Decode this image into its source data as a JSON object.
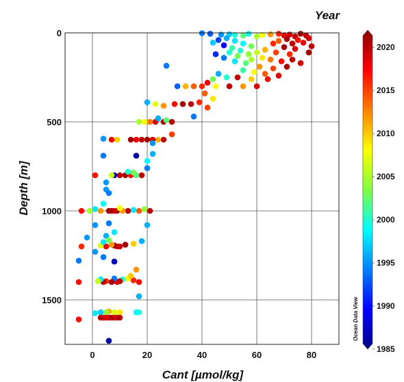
{
  "chart_data": {
    "type": "scatter",
    "title": "",
    "xlabel": "Cant [µmol/kg]",
    "ylabel": "Depth [m]",
    "xlim": [
      -10,
      90
    ],
    "ylim": [
      1750,
      0
    ],
    "y_inverted": true,
    "x_ticks": [
      0,
      20,
      40,
      60,
      80
    ],
    "y_ticks": [
      0,
      500,
      1000,
      1500
    ],
    "grid": true,
    "colorbar": {
      "title": "Year",
      "range": [
        1985,
        2022
      ],
      "ticks": [
        1985,
        1990,
        1995,
        2000,
        2005,
        2010,
        2015,
        2020
      ],
      "colormap": [
        "#00008b",
        "#0000ff",
        "#0080ff",
        "#00ffff",
        "#80ff40",
        "#ffff00",
        "#ff8000",
        "#ff0000",
        "#8b0000"
      ]
    },
    "watermark": "Ocean Data View",
    "points": [
      {
        "x": 40,
        "y": 2,
        "year": 1994
      },
      {
        "x": 43,
        "y": 5,
        "year": 1993
      },
      {
        "x": 47,
        "y": 10,
        "year": 1995
      },
      {
        "x": 50,
        "y": 8,
        "year": 1997
      },
      {
        "x": 52,
        "y": 12,
        "year": 2000
      },
      {
        "x": 55,
        "y": 15,
        "year": 2002
      },
      {
        "x": 57,
        "y": 5,
        "year": 1999
      },
      {
        "x": 60,
        "y": 20,
        "year": 2005
      },
      {
        "x": 62,
        "y": 12,
        "year": 2008
      },
      {
        "x": 65,
        "y": 8,
        "year": 2012
      },
      {
        "x": 68,
        "y": 5,
        "year": 2016
      },
      {
        "x": 70,
        "y": 15,
        "year": 2018
      },
      {
        "x": 72,
        "y": 10,
        "year": 2019
      },
      {
        "x": 74,
        "y": 20,
        "year": 2020
      },
      {
        "x": 76,
        "y": 5,
        "year": 2021
      },
      {
        "x": 78,
        "y": 15,
        "year": 2020
      },
      {
        "x": 79,
        "y": 30,
        "year": 2019
      },
      {
        "x": 75,
        "y": 40,
        "year": 2017
      },
      {
        "x": 71,
        "y": 35,
        "year": 2021
      },
      {
        "x": 68,
        "y": 45,
        "year": 2014
      },
      {
        "x": 66,
        "y": 60,
        "year": 2016
      },
      {
        "x": 73,
        "y": 60,
        "year": 2020
      },
      {
        "x": 77,
        "y": 55,
        "year": 2018
      },
      {
        "x": 80,
        "y": 75,
        "year": 2020
      },
      {
        "x": 70,
        "y": 80,
        "year": 2021
      },
      {
        "x": 74,
        "y": 90,
        "year": 2019
      },
      {
        "x": 79,
        "y": 110,
        "year": 2021
      },
      {
        "x": 72,
        "y": 120,
        "year": 2016
      },
      {
        "x": 67,
        "y": 110,
        "year": 2015
      },
      {
        "x": 63,
        "y": 95,
        "year": 2011
      },
      {
        "x": 58,
        "y": 75,
        "year": 2003
      },
      {
        "x": 55,
        "y": 60,
        "year": 1999
      },
      {
        "x": 52,
        "y": 45,
        "year": 1998
      },
      {
        "x": 49,
        "y": 30,
        "year": 1996
      },
      {
        "x": 46,
        "y": 40,
        "year": 1992
      },
      {
        "x": 44,
        "y": 55,
        "year": 1997
      },
      {
        "x": 48,
        "y": 70,
        "year": 1990
      },
      {
        "x": 51,
        "y": 85,
        "year": 2001
      },
      {
        "x": 54,
        "y": 100,
        "year": 2000
      },
      {
        "x": 57,
        "y": 120,
        "year": 2004
      },
      {
        "x": 60,
        "y": 110,
        "year": 2006
      },
      {
        "x": 62,
        "y": 140,
        "year": 2009
      },
      {
        "x": 65,
        "y": 150,
        "year": 2013
      },
      {
        "x": 69,
        "y": 160,
        "year": 2017
      },
      {
        "x": 73,
        "y": 150,
        "year": 2020
      },
      {
        "x": 76,
        "y": 170,
        "year": 2019
      },
      {
        "x": 71,
        "y": 190,
        "year": 2021
      },
      {
        "x": 66,
        "y": 200,
        "year": 2015
      },
      {
        "x": 61,
        "y": 190,
        "year": 2012
      },
      {
        "x": 56,
        "y": 170,
        "year": 2002
      },
      {
        "x": 52,
        "y": 160,
        "year": 1998
      },
      {
        "x": 48,
        "y": 140,
        "year": 1994
      },
      {
        "x": 45,
        "y": 120,
        "year": 1991
      },
      {
        "x": 50,
        "y": 110,
        "year": 2000
      },
      {
        "x": 53,
        "y": 130,
        "year": 2003
      },
      {
        "x": 58,
        "y": 150,
        "year": 2005
      },
      {
        "x": 55,
        "y": 210,
        "year": 2001
      },
      {
        "x": 59,
        "y": 220,
        "year": 2008
      },
      {
        "x": 63,
        "y": 230,
        "year": 2014
      },
      {
        "x": 68,
        "y": 240,
        "year": 2019
      },
      {
        "x": 64,
        "y": 260,
        "year": 2017
      },
      {
        "x": 58,
        "y": 260,
        "year": 2010
      },
      {
        "x": 53,
        "y": 250,
        "year": 2020
      },
      {
        "x": 49,
        "y": 250,
        "year": 2000
      },
      {
        "x": 46,
        "y": 230,
        "year": 1996
      },
      {
        "x": 44,
        "y": 260,
        "year": 2003
      },
      {
        "x": 42,
        "y": 280,
        "year": 2018
      },
      {
        "x": 40,
        "y": 300,
        "year": 2016
      },
      {
        "x": 45,
        "y": 300,
        "year": 2008
      },
      {
        "x": 50,
        "y": 300,
        "year": 2020
      },
      {
        "x": 55,
        "y": 300,
        "year": 2012
      },
      {
        "x": 60,
        "y": 300,
        "year": 2019
      },
      {
        "x": 37,
        "y": 300,
        "year": 2014
      },
      {
        "x": 34,
        "y": 300,
        "year": 2011
      },
      {
        "x": 31,
        "y": 300,
        "year": 1993
      },
      {
        "x": 27,
        "y": 185,
        "year": 1994
      },
      {
        "x": 41,
        "y": 340,
        "year": 2014
      },
      {
        "x": 44,
        "y": 370,
        "year": 2009
      },
      {
        "x": 39,
        "y": 390,
        "year": 2016
      },
      {
        "x": 36,
        "y": 400,
        "year": 2020
      },
      {
        "x": 33,
        "y": 400,
        "year": 2021
      },
      {
        "x": 30,
        "y": 400,
        "year": 2017
      },
      {
        "x": 26,
        "y": 410,
        "year": 2012
      },
      {
        "x": 23,
        "y": 400,
        "year": 2007
      },
      {
        "x": 20,
        "y": 390,
        "year": 1996
      },
      {
        "x": 42,
        "y": 420,
        "year": 2015
      },
      {
        "x": 37,
        "y": 470,
        "year": 1994
      },
      {
        "x": 29,
        "y": 500,
        "year": 2020
      },
      {
        "x": 26,
        "y": 500,
        "year": 2021
      },
      {
        "x": 23,
        "y": 500,
        "year": 2019
      },
      {
        "x": 21,
        "y": 500,
        "year": 2013
      },
      {
        "x": 19,
        "y": 500,
        "year": 2008
      },
      {
        "x": 17,
        "y": 500,
        "year": 2005
      },
      {
        "x": 24,
        "y": 480,
        "year": 1996
      },
      {
        "x": 27,
        "y": 490,
        "year": 2002
      },
      {
        "x": 29,
        "y": 570,
        "year": 2015
      },
      {
        "x": 26,
        "y": 600,
        "year": 2020
      },
      {
        "x": 24,
        "y": 600,
        "year": 2011
      },
      {
        "x": 22,
        "y": 600,
        "year": 2019
      },
      {
        "x": 20,
        "y": 600,
        "year": 2021
      },
      {
        "x": 18,
        "y": 600,
        "year": 2020
      },
      {
        "x": 16,
        "y": 600,
        "year": 2018
      },
      {
        "x": 14,
        "y": 600,
        "year": 2021
      },
      {
        "x": 22,
        "y": 620,
        "year": 1995
      },
      {
        "x": 16,
        "y": 690,
        "year": 1986
      },
      {
        "x": 22,
        "y": 680,
        "year": 1996
      },
      {
        "x": 9,
        "y": 600,
        "year": 2010
      },
      {
        "x": 7,
        "y": 600,
        "year": 2018
      },
      {
        "x": 4,
        "y": 595,
        "year": 1995
      },
      {
        "x": 4,
        "y": 690,
        "year": 1994
      },
      {
        "x": 20,
        "y": 720,
        "year": 1999
      },
      {
        "x": 20,
        "y": 760,
        "year": 1994
      },
      {
        "x": 18,
        "y": 800,
        "year": 2020
      },
      {
        "x": 16,
        "y": 800,
        "year": 2002
      },
      {
        "x": 14,
        "y": 800,
        "year": 2017
      },
      {
        "x": 12,
        "y": 800,
        "year": 2021
      },
      {
        "x": 10,
        "y": 800,
        "year": 2020
      },
      {
        "x": 8,
        "y": 800,
        "year": 1987
      },
      {
        "x": 13,
        "y": 780,
        "year": 2000
      },
      {
        "x": 15,
        "y": 785,
        "year": 2003
      },
      {
        "x": 7,
        "y": 800,
        "year": 2006
      },
      {
        "x": 1,
        "y": 800,
        "year": 2017
      },
      {
        "x": 5,
        "y": 840,
        "year": 1995
      },
      {
        "x": 5,
        "y": 880,
        "year": 1995
      },
      {
        "x": 6,
        "y": 900,
        "year": 1994
      },
      {
        "x": 4,
        "y": 960,
        "year": 1999
      },
      {
        "x": 21,
        "y": 1000,
        "year": 2020
      },
      {
        "x": 19,
        "y": 990,
        "year": 2004
      },
      {
        "x": 17,
        "y": 1000,
        "year": 2014
      },
      {
        "x": 15,
        "y": 995,
        "year": 1998
      },
      {
        "x": 13,
        "y": 1000,
        "year": 2020
      },
      {
        "x": 11,
        "y": 1000,
        "year": 2012
      },
      {
        "x": 9,
        "y": 1000,
        "year": 2021
      },
      {
        "x": 8,
        "y": 1000,
        "year": 2019
      },
      {
        "x": 7,
        "y": 1000,
        "year": 2020
      },
      {
        "x": 6,
        "y": 1000,
        "year": 2021
      },
      {
        "x": 3,
        "y": 1000,
        "year": 2012
      },
      {
        "x": 1,
        "y": 990,
        "year": 1998
      },
      {
        "x": -1,
        "y": 1000,
        "year": 2005
      },
      {
        "x": -4,
        "y": 1000,
        "year": 2017
      },
      {
        "x": 10,
        "y": 985,
        "year": 2008
      },
      {
        "x": 20,
        "y": 1080,
        "year": 1996
      },
      {
        "x": 6,
        "y": 1070,
        "year": 1994
      },
      {
        "x": 1,
        "y": 1080,
        "year": 1995
      },
      {
        "x": 8,
        "y": 1120,
        "year": 1998
      },
      {
        "x": 5,
        "y": 1140,
        "year": 1996
      },
      {
        "x": -2,
        "y": 1150,
        "year": 1995
      },
      {
        "x": 18,
        "y": 1170,
        "year": 1996
      },
      {
        "x": 15,
        "y": 1185,
        "year": 2010
      },
      {
        "x": 12,
        "y": 1190,
        "year": 2021
      },
      {
        "x": 10,
        "y": 1200,
        "year": 2020
      },
      {
        "x": 9,
        "y": 1200,
        "year": 2019
      },
      {
        "x": 8,
        "y": 1195,
        "year": 2021
      },
      {
        "x": 7,
        "y": 1190,
        "year": 2012
      },
      {
        "x": 5,
        "y": 1200,
        "year": 2018
      },
      {
        "x": 3,
        "y": 1195,
        "year": 2007
      },
      {
        "x": 4,
        "y": 1175,
        "year": 1998
      },
      {
        "x": 6,
        "y": 1165,
        "year": 2003
      },
      {
        "x": -4,
        "y": 1200,
        "year": 2016
      },
      {
        "x": 1,
        "y": 1230,
        "year": 1995
      },
      {
        "x": 4,
        "y": 1260,
        "year": 1994
      },
      {
        "x": -5,
        "y": 1280,
        "year": 1994
      },
      {
        "x": 8,
        "y": 1285,
        "year": 1987
      },
      {
        "x": 16,
        "y": 1330,
        "year": 2012
      },
      {
        "x": 17,
        "y": 1400,
        "year": 2017
      },
      {
        "x": 15,
        "y": 1390,
        "year": 2016
      },
      {
        "x": 13,
        "y": 1380,
        "year": 2008
      },
      {
        "x": 11,
        "y": 1385,
        "year": 2000
      },
      {
        "x": 10,
        "y": 1395,
        "year": 2020
      },
      {
        "x": 9,
        "y": 1400,
        "year": 2019
      },
      {
        "x": 8,
        "y": 1380,
        "year": 1994
      },
      {
        "x": 7,
        "y": 1400,
        "year": 2021
      },
      {
        "x": 5,
        "y": 1395,
        "year": 2016
      },
      {
        "x": 4,
        "y": 1400,
        "year": 2020
      },
      {
        "x": 3,
        "y": 1385,
        "year": 1998
      },
      {
        "x": 2,
        "y": 1395,
        "year": 2006
      },
      {
        "x": -5,
        "y": 1400,
        "year": 2017
      },
      {
        "x": 14,
        "y": 1365,
        "year": 2010
      },
      {
        "x": 17,
        "y": 1480,
        "year": 1996
      },
      {
        "x": 17,
        "y": 1570,
        "year": 2000
      },
      {
        "x": 16,
        "y": 1570,
        "year": 1999
      },
      {
        "x": 10,
        "y": 1570,
        "year": 2009
      },
      {
        "x": 8,
        "y": 1570,
        "year": 2007
      },
      {
        "x": 6,
        "y": 1565,
        "year": 2011
      },
      {
        "x": 5,
        "y": 1570,
        "year": 2004
      },
      {
        "x": 3,
        "y": 1570,
        "year": 1997
      },
      {
        "x": 1,
        "y": 1575,
        "year": 1998
      },
      {
        "x": 10,
        "y": 1600,
        "year": 2020
      },
      {
        "x": 9,
        "y": 1600,
        "year": 2021
      },
      {
        "x": 8,
        "y": 1600,
        "year": 2019
      },
      {
        "x": 7,
        "y": 1600,
        "year": 2020
      },
      {
        "x": 6,
        "y": 1600,
        "year": 2021
      },
      {
        "x": 5,
        "y": 1600,
        "year": 2018
      },
      {
        "x": 4,
        "y": 1600,
        "year": 2019
      },
      {
        "x": 3,
        "y": 1600,
        "year": 2020
      },
      {
        "x": -5,
        "y": 1610,
        "year": 2017
      },
      {
        "x": 6,
        "y": 1730,
        "year": 1986
      }
    ]
  }
}
